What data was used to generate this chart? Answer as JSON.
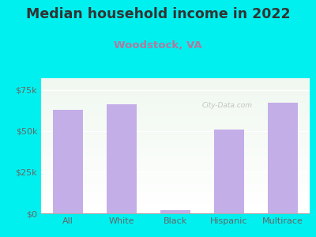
{
  "title": "Median household income in 2022",
  "subtitle": "Woodstock, VA",
  "categories": [
    "All",
    "White",
    "Black",
    "Hispanic",
    "Multirace"
  ],
  "values": [
    63000,
    66000,
    2000,
    51000,
    67000
  ],
  "bar_color": "#c4aee8",
  "title_color": "#333333",
  "subtitle_color": "#b07a9e",
  "background_color": "#00f0f0",
  "plot_bg_top_left": "#e8f5e8",
  "plot_bg_bottom_right": "#f8f8ff",
  "yticks": [
    0,
    25000,
    50000,
    75000
  ],
  "ytick_labels": [
    "$0",
    "$25k",
    "$50k",
    "$75k"
  ],
  "ylim": [
    0,
    82000
  ],
  "tick_color": "#666666",
  "watermark": "City-Data.com",
  "title_fontsize": 12.5,
  "subtitle_fontsize": 9.5,
  "tick_fontsize": 8
}
